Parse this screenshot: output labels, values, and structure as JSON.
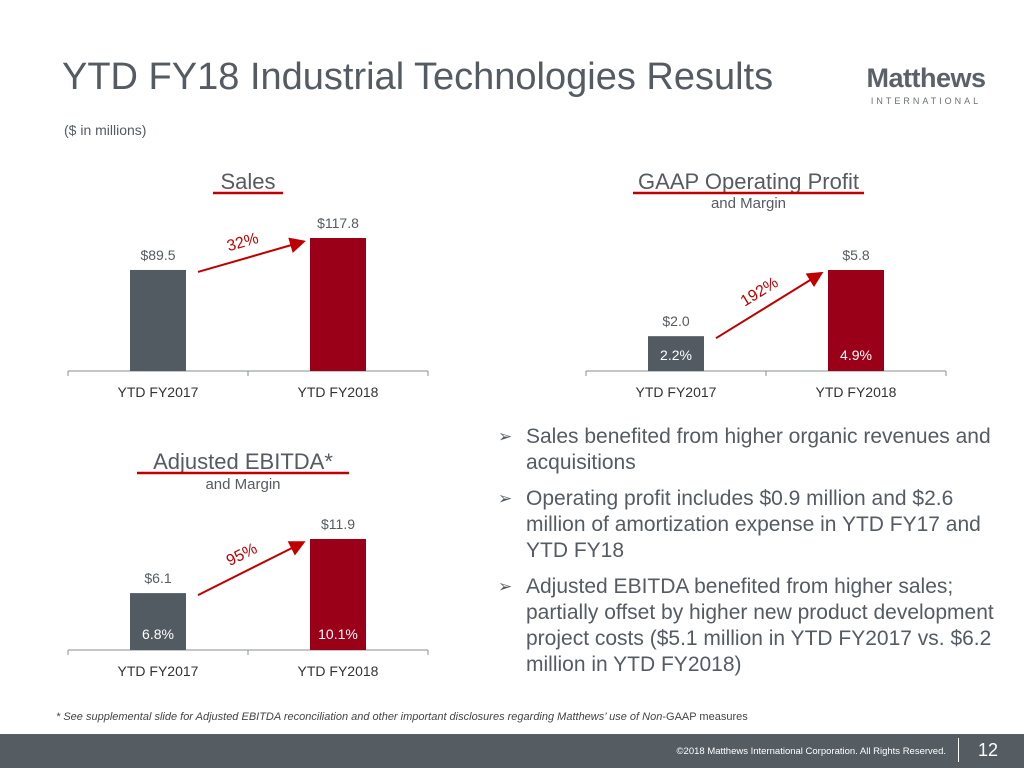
{
  "header": {
    "title": "YTD FY18 Industrial Technologies Results",
    "subtitle": "($ in millions)"
  },
  "logo": {
    "name": "Matthews",
    "tagline": "INTERNATIONAL"
  },
  "colors": {
    "fy2017_bar": "#535b62",
    "fy2018_bar": "#9b0019",
    "accent_red": "#c00000",
    "text_gray": "#545b62",
    "footer_bg": "#555d63"
  },
  "chart_data": [
    {
      "type": "bar",
      "title": "Sales",
      "subtitle": "",
      "categories": [
        "YTD FY2017",
        "YTD FY2018"
      ],
      "values": [
        89.5,
        117.8
      ],
      "value_labels": [
        "$89.5",
        "$117.8"
      ],
      "margin_labels": [],
      "growth_label": "32%",
      "ylim": [
        0,
        130
      ]
    },
    {
      "type": "bar",
      "title": "GAAP Operating Profit",
      "subtitle": "and Margin",
      "categories": [
        "YTD FY2017",
        "YTD FY2018"
      ],
      "values": [
        2.0,
        5.8
      ],
      "value_labels": [
        "$2.0",
        "$5.8"
      ],
      "margin_labels": [
        "2.2%",
        "4.9%"
      ],
      "growth_label": "192%",
      "ylim": [
        0,
        6.5
      ]
    },
    {
      "type": "bar",
      "title": "Adjusted EBITDA*",
      "subtitle": "and Margin",
      "categories": [
        "YTD FY2017",
        "YTD FY2018"
      ],
      "values": [
        6.1,
        11.9
      ],
      "value_labels": [
        "$6.1",
        "$11.9"
      ],
      "margin_labels": [
        "6.8%",
        "10.1%"
      ],
      "growth_label": "95%",
      "ylim": [
        0,
        13
      ]
    }
  ],
  "bullets": [
    "Sales benefited from higher organic revenues and acquisitions",
    "Operating profit includes $0.9 million and $2.6 million of amortization expense in YTD FY17 and YTD FY18",
    "Adjusted EBITDA benefited from higher sales; partially offset by higher new product development project costs ($5.1 million in YTD FY2017 vs. $6.2 million in YTD FY2018)"
  ],
  "footnote": {
    "italic": "* See supplemental slide for Adjusted EBITDA reconciliation and other important disclosures regarding Matthews’ use of Non",
    "normal": "-GAAP measures"
  },
  "footer": {
    "copyright": "©2018 Matthews International Corporation. All Rights Reserved.",
    "page_number": "12"
  }
}
